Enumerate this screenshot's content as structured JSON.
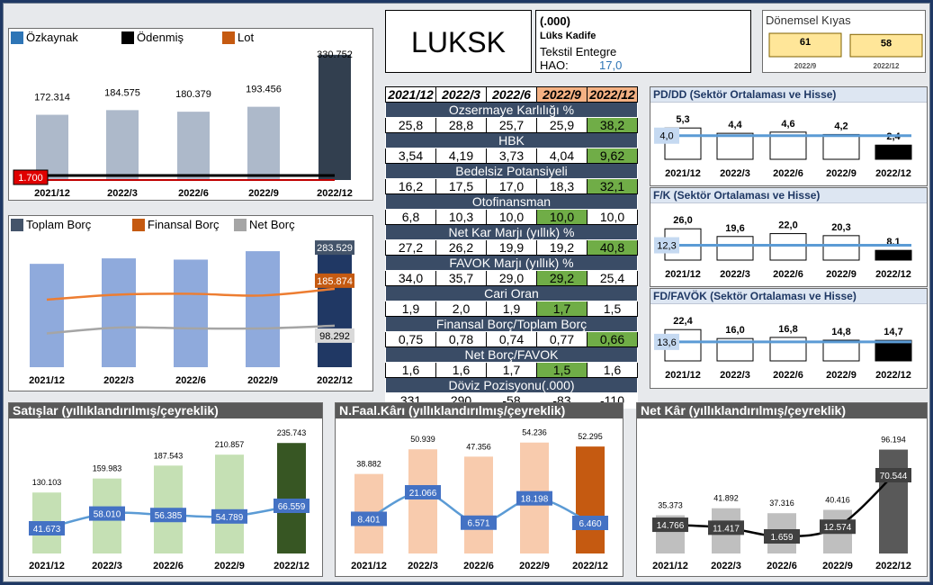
{
  "header": {
    "ticker": "LUKSK",
    "code": "(.000)",
    "company": "Lüks Kadife",
    "sector": "Tekstil Entegre",
    "hao_label": "HAO:",
    "hao_value": "17,0"
  },
  "donemsel": {
    "title": "Dönemsel Kıyas",
    "bars": [
      {
        "label": "2022/9",
        "value": "61",
        "amount": 61
      },
      {
        "label": "2022/12",
        "value": "58",
        "amount": 58
      }
    ]
  },
  "colors": {
    "navy": "#1f3864",
    "bar_grey": "#adb9ca",
    "bar_dark": "#323f4f",
    "orange": "#c55a11",
    "green": "#70ad47",
    "dark_green": "#375623",
    "peach": "#f8cbad"
  },
  "periods": [
    "2021/12",
    "2022/3",
    "2022/6",
    "2022/9",
    "2022/12"
  ],
  "chart_data": [
    {
      "id": "ozkaynak",
      "type": "bar",
      "legend": [
        "Özkaynak",
        "Ödenmiş",
        "Lot"
      ],
      "categories": [
        "2021/12",
        "2022/3",
        "2022/6",
        "2022/9",
        "2022/12"
      ],
      "series": [
        {
          "name": "Özkaynak",
          "values": [
            172314,
            184575,
            180379,
            193456,
            330752
          ],
          "labels": [
            "172.314",
            "184.575",
            "180.379",
            "193.456",
            "330.752"
          ]
        },
        {
          "name": "Ödenmiş",
          "values": [
            1700,
            1700,
            1700,
            1700,
            1700
          ],
          "labels": [
            "1.700"
          ]
        },
        {
          "name": "Lot",
          "values": [
            1700,
            1700,
            1700,
            1700,
            1700
          ]
        }
      ]
    },
    {
      "id": "borc",
      "type": "bar",
      "legend": [
        "Toplam Borç",
        "Finansal Borç",
        "Net Borç"
      ],
      "categories": [
        "2021/12",
        "2022/3",
        "2022/6",
        "2022/9",
        "2022/12"
      ],
      "series": [
        {
          "name": "Toplam Borç",
          "values": [
            245000,
            258000,
            255000,
            275000,
            283529
          ],
          "labels": [
            "283.529"
          ]
        },
        {
          "name": "Finansal Borç",
          "values": [
            160000,
            172000,
            174000,
            170000,
            185874
          ],
          "labels": [
            "185.874"
          ]
        },
        {
          "name": "Net Borç",
          "values": [
            80000,
            94000,
            92000,
            92000,
            98292
          ],
          "labels": [
            "98.292"
          ]
        }
      ]
    },
    {
      "id": "pd_dd",
      "type": "bar",
      "title": "PD/DD (Sektör Ortalaması ve Hisse)",
      "categories": [
        "2021/12",
        "2022/3",
        "2022/6",
        "2022/9",
        "2022/12"
      ],
      "values": [
        5.3,
        4.4,
        4.6,
        4.2,
        2.4
      ],
      "labels": [
        "5,3",
        "4,4",
        "4,6",
        "4,2",
        "2,4"
      ],
      "avg": 4.0,
      "avg_label": "4,0"
    },
    {
      "id": "fk",
      "type": "bar",
      "title": "F/K (Sektör Ortalaması ve Hisse)",
      "categories": [
        "2021/12",
        "2022/3",
        "2022/6",
        "2022/9",
        "2022/12"
      ],
      "values": [
        26.0,
        19.6,
        22.0,
        20.3,
        8.1
      ],
      "labels": [
        "26,0",
        "19,6",
        "22,0",
        "20,3",
        "8,1"
      ],
      "avg": 12.3,
      "avg_label": "12,3"
    },
    {
      "id": "fd_favok",
      "type": "bar",
      "title": "FD/FAVÖK (Sektör Ortalaması ve Hisse)",
      "categories": [
        "2021/12",
        "2022/3",
        "2022/6",
        "2022/9",
        "2022/12"
      ],
      "values": [
        22.4,
        16.0,
        16.8,
        14.8,
        14.7
      ],
      "labels": [
        "22,4",
        "16,0",
        "16,8",
        "14,8",
        "14,7"
      ],
      "avg": 13.6,
      "avg_label": "13,6"
    },
    {
      "id": "satislar",
      "type": "bar",
      "title": "Satışlar (yıllıklandırılmış/çeyreklik)",
      "categories": [
        "2021/12",
        "2022/3",
        "2022/6",
        "2022/9",
        "2022/12"
      ],
      "series": [
        {
          "name": "yıllıklandırılmış",
          "values": [
            130103,
            159983,
            187543,
            210857,
            235743
          ],
          "labels": [
            "130.103",
            "159.983",
            "187.543",
            "210.857",
            "235.743"
          ]
        },
        {
          "name": "çeyreklik",
          "values": [
            41673,
            58010,
            56385,
            54789,
            66559
          ],
          "labels": [
            "41.673",
            "58.010",
            "56.385",
            "54.789",
            "66.559"
          ]
        }
      ]
    },
    {
      "id": "nfaal",
      "type": "bar",
      "title": "N.Faal.Kârı (yıllıklandırılmış/çeyreklik)",
      "categories": [
        "2021/12",
        "2022/3",
        "2022/6",
        "2022/9",
        "2022/12"
      ],
      "series": [
        {
          "name": "yıllıklandırılmış",
          "values": [
            38882,
            50939,
            47356,
            54236,
            52295
          ],
          "labels": [
            "38.882",
            "50.939",
            "47.356",
            "54.236",
            "52.295"
          ]
        },
        {
          "name": "çeyreklik",
          "values": [
            8401,
            21066,
            6571,
            18198,
            6460
          ],
          "labels": [
            "8.401",
            "21.066",
            "6.571",
            "18.198",
            "6.460"
          ]
        }
      ]
    },
    {
      "id": "netkar",
      "type": "bar",
      "title": "Net Kâr (yıllıklandırılmış/çeyreklik)",
      "categories": [
        "2021/12",
        "2022/3",
        "2022/6",
        "2022/9",
        "2022/12"
      ],
      "series": [
        {
          "name": "yıllıklandırılmış",
          "values": [
            35373,
            41892,
            37316,
            40416,
            96194
          ],
          "labels": [
            "35.373",
            "41.892",
            "37.316",
            "40.416",
            "96.194"
          ]
        },
        {
          "name": "çeyreklik",
          "values": [
            14766,
            11417,
            1659,
            12574,
            70544
          ],
          "labels": [
            "14.766",
            "11.417",
            "1.659",
            "12.574",
            "70.544"
          ]
        }
      ]
    }
  ],
  "metrics_table": {
    "headers": [
      "2021/12",
      "2022/3",
      "2022/6",
      "2022/9",
      "2022/12"
    ],
    "rows": [
      {
        "name": "Ozsermaye Karlılığı %",
        "values": [
          "25,8",
          "28,8",
          "25,7",
          "25,9",
          "38,2"
        ],
        "green": [
          4
        ]
      },
      {
        "name": "HBK",
        "values": [
          "3,54",
          "4,19",
          "3,73",
          "4,04",
          "9,62"
        ],
        "green": [
          4
        ]
      },
      {
        "name": "Bedelsiz Potansiyeli",
        "values": [
          "16,2",
          "17,5",
          "17,0",
          "18,3",
          "32,1"
        ],
        "green": [
          4
        ]
      },
      {
        "name": "Otofinansman",
        "values": [
          "6,8",
          "10,3",
          "10,0",
          "10,0",
          "10,0"
        ],
        "green": [
          3
        ]
      },
      {
        "name": "Net Kar Marjı (yıllık) %",
        "values": [
          "27,2",
          "26,2",
          "19,9",
          "19,2",
          "40,8"
        ],
        "green": [
          4
        ]
      },
      {
        "name": "FAVOK Marjı (yıllık) %",
        "values": [
          "34,0",
          "35,7",
          "29,0",
          "29,2",
          "25,4"
        ],
        "green": [
          3
        ]
      },
      {
        "name": "Cari Oran",
        "values": [
          "1,9",
          "2,0",
          "1,9",
          "1,7",
          "1,5"
        ],
        "green": [
          3
        ]
      },
      {
        "name": "Finansal Borç/Toplam Borç",
        "values": [
          "0,75",
          "0,78",
          "0,74",
          "0,77",
          "0,66"
        ],
        "green": [
          4
        ]
      },
      {
        "name": "Net Borç/FAVOK",
        "values": [
          "1,6",
          "1,6",
          "1,7",
          "1,5",
          "1,6"
        ],
        "green": [
          3
        ]
      }
    ],
    "doviz": {
      "name": "Döviz Pozisyonu(.000)",
      "values": [
        "331",
        "290",
        "-58",
        "-83",
        "-110"
      ]
    }
  }
}
